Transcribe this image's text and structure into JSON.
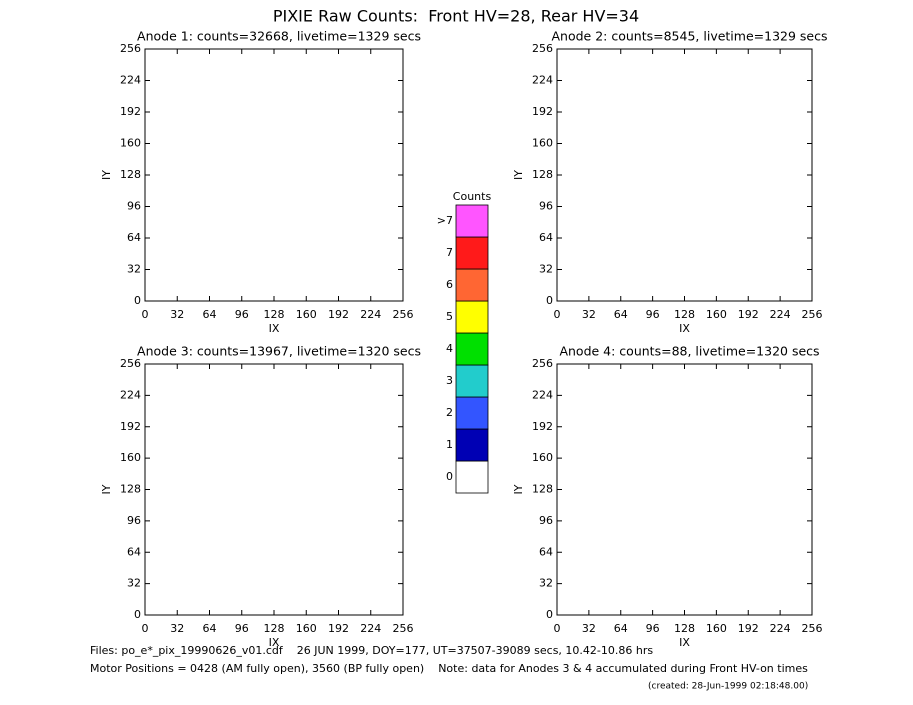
{
  "title": "PIXIE Raw Counts:  Front HV=28, Rear HV=34",
  "axis": {
    "range": [
      0,
      256
    ],
    "ticks": [
      0,
      32,
      64,
      96,
      128,
      160,
      192,
      224,
      256
    ],
    "xlabel": "IX",
    "ylabel": "IY"
  },
  "panels": [
    {
      "title": "Anode 1: counts=32668, livetime=1329 secs"
    },
    {
      "title": "Anode 2: counts=8545, livetime=1329 secs"
    },
    {
      "title": "Anode 3: counts=13967, livetime=1320 secs"
    },
    {
      "title": "Anode 4: counts=88, livetime=1320 secs"
    }
  ],
  "colorbar": {
    "title": "Counts",
    "levels": [
      {
        "label": "0",
        "color": "#ffffff"
      },
      {
        "label": "1",
        "color": "#0000b4"
      },
      {
        "label": "2",
        "color": "#3355ff"
      },
      {
        "label": "3",
        "color": "#22cccc"
      },
      {
        "label": "4",
        "color": "#00e000"
      },
      {
        "label": "5",
        "color": "#ffff00"
      },
      {
        "label": "6",
        "color": "#ff6633"
      },
      {
        "label": "7",
        "color": "#ff1a1a"
      },
      {
        "label": ">7",
        "color": "#ff55ff"
      }
    ]
  },
  "footer": {
    "files": "Files: po_e*_pix_19990626_v01.cdf    26 JUN 1999, DOY=177, UT=37507-39089 secs, 10.42-10.86 hrs",
    "motor": "Motor Positions = 0428 (AM fully open), 3560 (BP fully open)    Note: data for Anodes 3 & 4 accumulated during Front HV-on times",
    "created": "(created: 28-Jun-1999 02:18:48.00)"
  }
}
